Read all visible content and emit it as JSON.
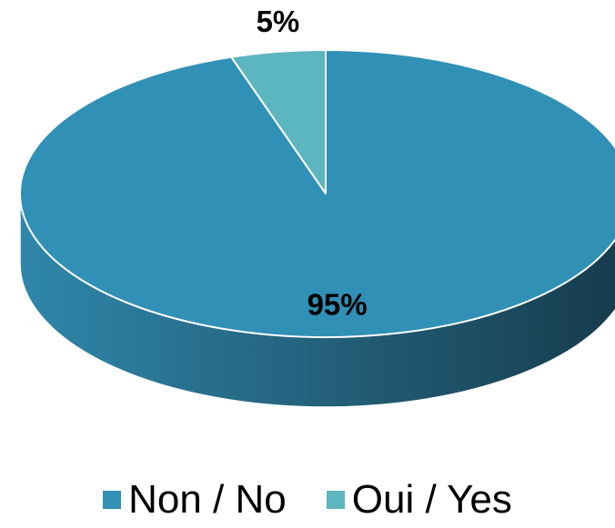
{
  "chart_data": {
    "type": "pie",
    "title": "",
    "three_d": true,
    "categories": [
      "Non / No",
      "Oui / Yes"
    ],
    "values": [
      95,
      5
    ],
    "data_labels": [
      "95%",
      "5%"
    ],
    "colors": [
      "#3190b6",
      "#5bb6c0"
    ],
    "legend_position": "bottom"
  }
}
